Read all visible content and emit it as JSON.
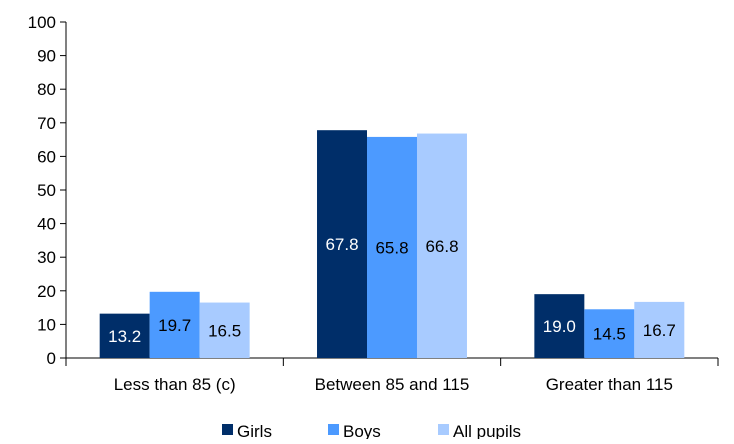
{
  "chart_data": {
    "type": "bar",
    "categories": [
      "Less than 85 (c)",
      "Between 85 and 115",
      "Greater than 115"
    ],
    "series": [
      {
        "name": "Girls",
        "color": "#002e69",
        "label_color": "#ffffff",
        "values": [
          13.2,
          67.8,
          19.0
        ],
        "labels": [
          "13.2",
          "67.8",
          "19.0"
        ]
      },
      {
        "name": "Boys",
        "color": "#4c9aff",
        "label_color": "#000000",
        "values": [
          19.7,
          65.8,
          14.5
        ],
        "labels": [
          "19.7",
          "65.8",
          "14.5"
        ]
      },
      {
        "name": "All pupils",
        "color": "#a8cbff",
        "label_color": "#000000",
        "values": [
          16.5,
          66.8,
          16.7
        ],
        "labels": [
          "16.5",
          "66.8",
          "16.7"
        ]
      }
    ],
    "yticks": [
      "0",
      "10",
      "20",
      "30",
      "40",
      "50",
      "60",
      "70",
      "80",
      "90",
      "100"
    ],
    "ylim": [
      0,
      100
    ],
    "grid": false,
    "legend_position": "bottom"
  }
}
